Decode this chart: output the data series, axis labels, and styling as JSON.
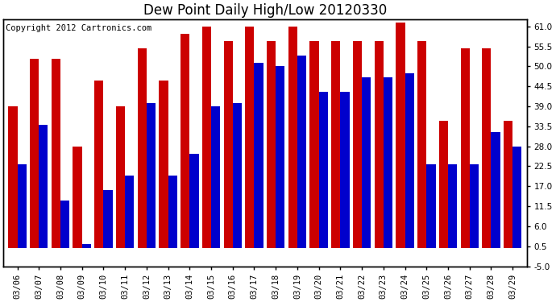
{
  "title": "Dew Point Daily High/Low 20120330",
  "copyright": "Copyright 2012 Cartronics.com",
  "dates": [
    "03/06",
    "03/07",
    "03/08",
    "03/09",
    "03/10",
    "03/11",
    "03/12",
    "03/13",
    "03/14",
    "03/15",
    "03/16",
    "03/17",
    "03/18",
    "03/19",
    "03/20",
    "03/21",
    "03/22",
    "03/23",
    "03/24",
    "03/25",
    "03/26",
    "03/27",
    "03/28",
    "03/29"
  ],
  "high": [
    39,
    52,
    52,
    28,
    46,
    39,
    55,
    46,
    59,
    61,
    57,
    61,
    57,
    61,
    57,
    57,
    57,
    57,
    62,
    57,
    35,
    55,
    55,
    35
  ],
  "low": [
    23,
    34,
    13,
    1,
    16,
    20,
    40,
    20,
    26,
    39,
    40,
    51,
    50,
    53,
    43,
    43,
    47,
    47,
    48,
    23,
    23,
    23,
    32,
    28
  ],
  "high_color": "#cc0000",
  "low_color": "#0000cc",
  "bg_color": "#ffffff",
  "plot_bg_color": "#ffffff",
  "grid_color": "#aaaaaa",
  "ylim": [
    -5,
    63
  ],
  "yticks": [
    -5,
    0.5,
    6,
    11.5,
    17,
    22.5,
    28,
    33.5,
    39,
    44.5,
    50,
    55.5,
    61
  ],
  "ytick_labels": [
    "-5.0",
    "0.5",
    "6.0",
    "11.5",
    "17.0",
    "22.5",
    "28.0",
    "33.5",
    "39.0",
    "44.5",
    "50.0",
    "55.5",
    "61.0"
  ],
  "bar_width": 0.42,
  "title_fontsize": 12,
  "tick_fontsize": 7.5,
  "copyright_fontsize": 7.5
}
